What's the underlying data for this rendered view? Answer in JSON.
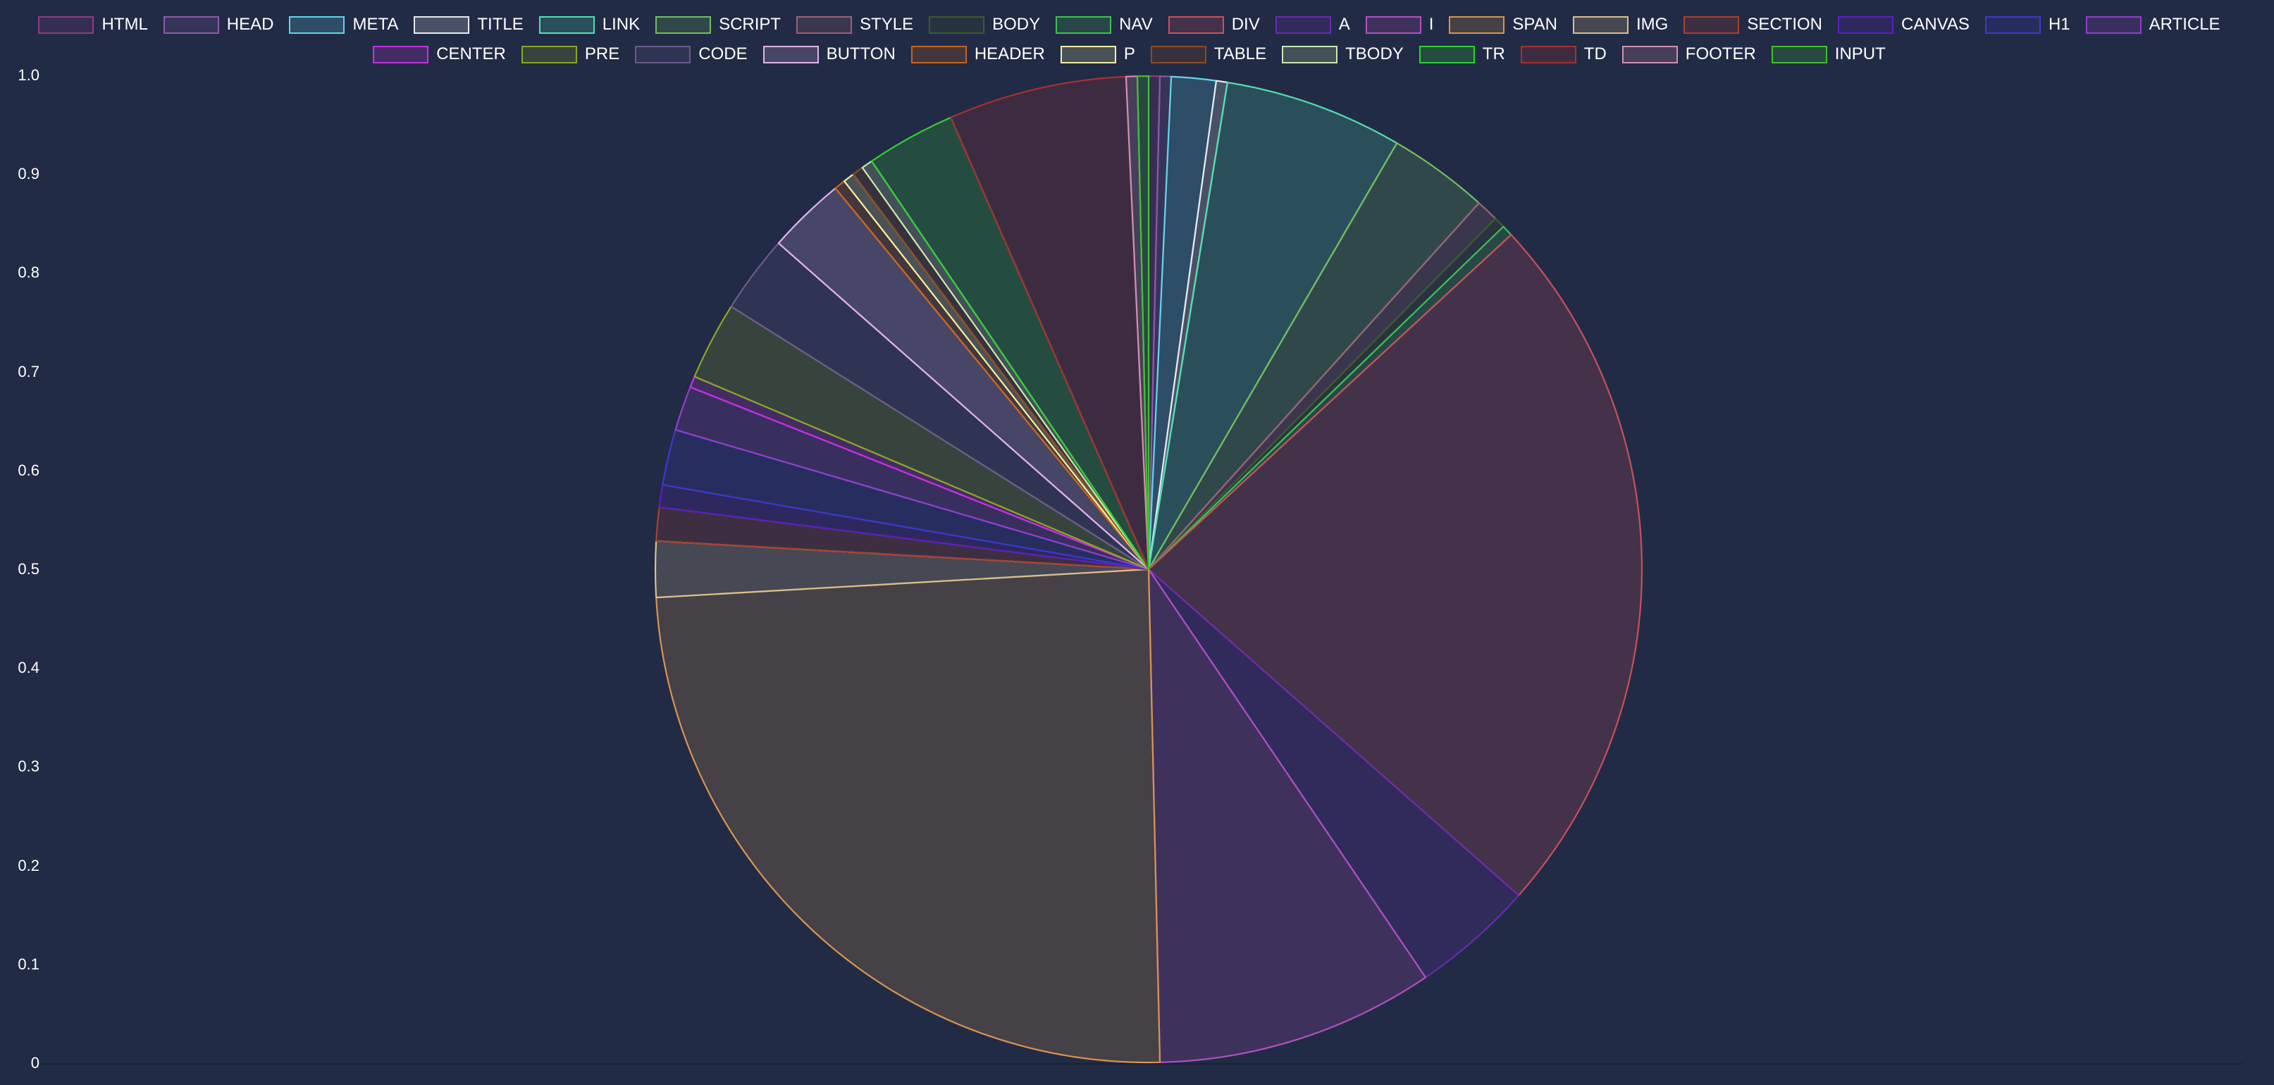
{
  "chart_data": {
    "type": "pie",
    "title": "",
    "xlabel": "",
    "ylabel": "",
    "ylim": [
      0,
      1.0
    ],
    "y_ticks": [
      "1.0",
      "0.9",
      "0.8",
      "0.7",
      "0.6",
      "0.5",
      "0.4",
      "0.3",
      "0.2",
      "0.1",
      "0"
    ],
    "legend_position": "top",
    "start_angle_deg": 0,
    "direction": "clockwise",
    "categories": [
      "HTML",
      "HEAD",
      "META",
      "TITLE",
      "LINK",
      "SCRIPT",
      "STYLE",
      "BODY",
      "NAV",
      "DIV",
      "A",
      "I",
      "SPAN",
      "IMG",
      "SECTION",
      "CANVAS",
      "H1",
      "ARTICLE",
      "CENTER",
      "PRE",
      "CODE",
      "BUTTON",
      "HEADER",
      "P",
      "TABLE",
      "TBODY",
      "TR",
      "TD",
      "FOOTER",
      "INPUT"
    ],
    "values": [
      1,
      1,
      4,
      1,
      16,
      9,
      2,
      1,
      1,
      64,
      11,
      25,
      67,
      5,
      3,
      2,
      5,
      4,
      1,
      7,
      7,
      7,
      1,
      1,
      1,
      1,
      8,
      16,
      1,
      1
    ],
    "colors": [
      "#8a3f80",
      "#8b5aa8",
      "#5fd6ea",
      "#e8eaf0",
      "#4fe0b0",
      "#6fbf5f",
      "#9a6272",
      "#3b5a2c",
      "#3fc04f",
      "#c8505a",
      "#6a2bb0",
      "#b050c0",
      "#d8944f",
      "#d8c08c",
      "#a84030",
      "#5a20c0",
      "#3a3ac8",
      "#9040c8",
      "#c830e0",
      "#8aa820",
      "#6a5a8c",
      "#e2b4ea",
      "#c86418",
      "#f0f0a0",
      "#8c4a20",
      "#c8e8b0",
      "#30d030",
      "#a83030",
      "#d090b0",
      "#40c030"
    ]
  },
  "legend": {
    "row1": [
      "HTML",
      "HEAD",
      "META",
      "TITLE",
      "LINK",
      "SCRIPT",
      "STYLE",
      "BODY",
      "NAV",
      "DIV",
      "A",
      "I",
      "SPAN",
      "IMG",
      "SECTION",
      "CANVAS",
      "H1",
      "ARTICLE"
    ],
    "row2": [
      "CENTER",
      "PRE",
      "CODE",
      "BUTTON",
      "HEADER",
      "P",
      "TABLE",
      "TBODY",
      "TR",
      "TD",
      "FOOTER",
      "INPUT"
    ]
  },
  "theme": {
    "background": "#222b45",
    "axis_line": "#1a2138",
    "text": "#ffffff",
    "fill_alpha": 0.2
  }
}
